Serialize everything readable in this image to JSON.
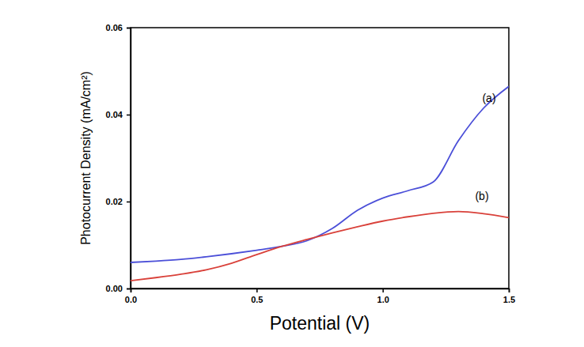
{
  "chart_data": {
    "type": "line",
    "x_label": "Potential (V)",
    "y_label": "Photocurrent Density (mA/cm²)",
    "x": [
      0,
      0.1,
      0.2,
      0.3,
      0.4,
      0.5,
      0.6,
      0.7,
      0.8,
      0.9,
      1.0,
      1.1,
      1.2,
      1.3,
      1.4,
      1.5
    ],
    "series": [
      {
        "name": "(a)",
        "color": "#4b4fd8",
        "values": [
          0.006,
          0.0063,
          0.0067,
          0.0073,
          0.008,
          0.0088,
          0.0097,
          0.011,
          0.0138,
          0.018,
          0.0208,
          0.0225,
          0.0245,
          0.034,
          0.0415,
          0.0465
        ]
      },
      {
        "name": "(b)",
        "color": "#d9413a",
        "values": [
          0.0018,
          0.0025,
          0.0033,
          0.0043,
          0.0058,
          0.0078,
          0.0097,
          0.0113,
          0.0128,
          0.0142,
          0.0155,
          0.0165,
          0.0173,
          0.0177,
          0.0172,
          0.0163
        ]
      }
    ],
    "xlim": [
      0,
      1.5
    ],
    "xticks": [
      {
        "value": 0,
        "label": "0.0"
      },
      0.5,
      {
        "value": 1,
        "label": "1.0"
      },
      1.5
    ],
    "ylim": [
      0,
      0.06
    ],
    "yticks": [
      {
        "value": 0,
        "label": "0.00"
      },
      {
        "value": 0.02,
        "label": "0.02"
      },
      {
        "value": 0.04,
        "label": "0.04"
      },
      {
        "value": 0.06,
        "label": "0.06"
      }
    ],
    "grid": false
  }
}
